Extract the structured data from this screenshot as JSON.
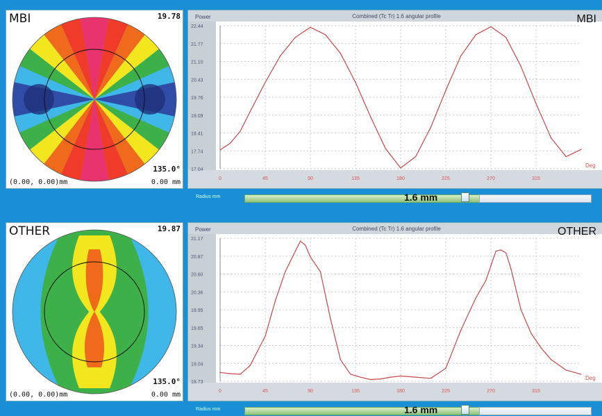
{
  "colors": {
    "background": "#1a8fd6",
    "curve": "#c8474a",
    "tick": "#e05050",
    "ylabel": "#555577"
  },
  "panels": [
    {
      "map": {
        "label": "MBI",
        "max": "19.78",
        "min": "135.0°",
        "coords": "(0.00, 0.00)mm",
        "radius": "0.00 mm"
      },
      "plot": {
        "label": "MBI",
        "header": "Power",
        "title": "Combined (Tc Tr) 1.6 angular profile",
        "xunit": "Deg",
        "yticks": [
          "22.44",
          "21.77",
          "21.10",
          "20.43",
          "19.76",
          "19.09",
          "18.41",
          "17.74",
          "17.04"
        ],
        "xticks": [
          "0",
          "45",
          "90",
          "135",
          "180",
          "225",
          "270",
          "315"
        ]
      },
      "slider": {
        "caption": "Radius mm",
        "value": "1.6 mm"
      }
    },
    {
      "map": {
        "label": "OTHER",
        "max": "19.87",
        "min": "135.0°",
        "coords": "(0.00, 0.00)mm",
        "radius": "0.00 mm"
      },
      "plot": {
        "label": "OTHER",
        "header": "Power",
        "title": "Combined (Tc Tr) 1.6 angular profile",
        "xunit": "Deg",
        "yticks": [
          "21.17",
          "20.87",
          "20.60",
          "20.36",
          "19.95",
          "19.65",
          "19.34",
          "19.04",
          "18.73"
        ],
        "xticks": [
          "0",
          "45",
          "90",
          "135",
          "180",
          "225",
          "270",
          "315"
        ]
      },
      "slider": {
        "caption": "Radius mm",
        "value": "1.6 mm"
      }
    }
  ],
  "chart_data": [
    {
      "type": "line",
      "title": "Combined (Tc Tr) 1.6 angular profile",
      "xlabel": "Deg",
      "ylabel": "Power",
      "xlim": [
        0,
        360
      ],
      "ylim": [
        17.04,
        22.44
      ],
      "grid": true,
      "series": [
        {
          "x": [
            0,
            10,
            20,
            30,
            45,
            60,
            75,
            90,
            105,
            120,
            135,
            150,
            165,
            180,
            195,
            210,
            225,
            240,
            255,
            270,
            285,
            300,
            315,
            330,
            345,
            360
          ],
          "values": [
            17.75,
            18.0,
            18.45,
            19.2,
            20.3,
            21.3,
            22.0,
            22.38,
            22.1,
            21.4,
            20.3,
            19.0,
            17.8,
            17.07,
            17.5,
            18.6,
            20.0,
            21.3,
            22.1,
            22.4,
            22.0,
            20.9,
            19.5,
            18.2,
            17.5,
            17.77
          ]
        }
      ]
    },
    {
      "type": "line",
      "title": "Combined (Tc Tr) 1.6 angular profile",
      "xlabel": "Deg",
      "ylabel": "Power",
      "xlim": [
        0,
        360
      ],
      "ylim": [
        18.73,
        21.17
      ],
      "grid": true,
      "series": [
        {
          "x": [
            0,
            10,
            20,
            30,
            45,
            55,
            65,
            75,
            80,
            85,
            90,
            100,
            110,
            120,
            130,
            140,
            150,
            160,
            170,
            180,
            195,
            210,
            225,
            240,
            255,
            265,
            270,
            275,
            280,
            285,
            290,
            300,
            310,
            320,
            330,
            345,
            360
          ],
          "values": [
            18.88,
            18.86,
            18.85,
            19.0,
            19.5,
            20.1,
            20.6,
            20.95,
            21.12,
            21.05,
            20.85,
            20.6,
            19.8,
            19.1,
            18.85,
            18.8,
            18.76,
            18.77,
            18.8,
            18.82,
            18.8,
            18.78,
            18.95,
            19.6,
            20.15,
            20.45,
            20.7,
            20.95,
            20.97,
            20.92,
            20.65,
            19.95,
            19.55,
            19.3,
            19.1,
            18.92,
            18.85
          ]
        }
      ]
    }
  ]
}
